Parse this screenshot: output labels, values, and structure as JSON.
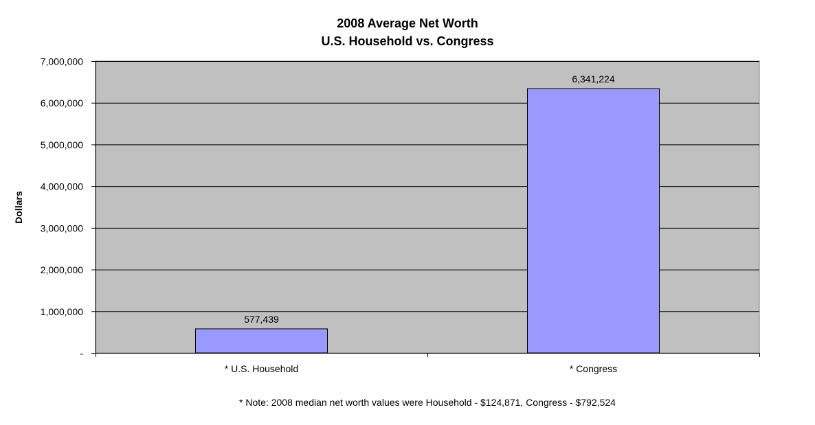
{
  "chart_data": {
    "type": "bar",
    "title": "2008 Average Net Worth",
    "subtitle": "U.S. Household vs. Congress",
    "xlabel": "",
    "ylabel": "Dollars",
    "categories": [
      "* U.S. Household",
      "* Congress"
    ],
    "values": [
      577439,
      6341224
    ],
    "data_labels": [
      "577,439",
      "6,341,224"
    ],
    "ylim": [
      0,
      7000000
    ],
    "y_ticks": [
      0,
      1000000,
      2000000,
      3000000,
      4000000,
      5000000,
      6000000,
      7000000
    ],
    "y_tick_labels": [
      "-",
      "1,000,000",
      "2,000,000",
      "3,000,000",
      "4,000,000",
      "5,000,000",
      "6,000,000",
      "7,000,000"
    ],
    "grid": true,
    "legend": "none",
    "colors": {
      "bar": "#9999ff",
      "plot_background": "#c0c0c0",
      "gridline": "#000000"
    }
  },
  "note": "* Note: 2008 median net worth values were Household - $124,871, Congress - $792,524"
}
